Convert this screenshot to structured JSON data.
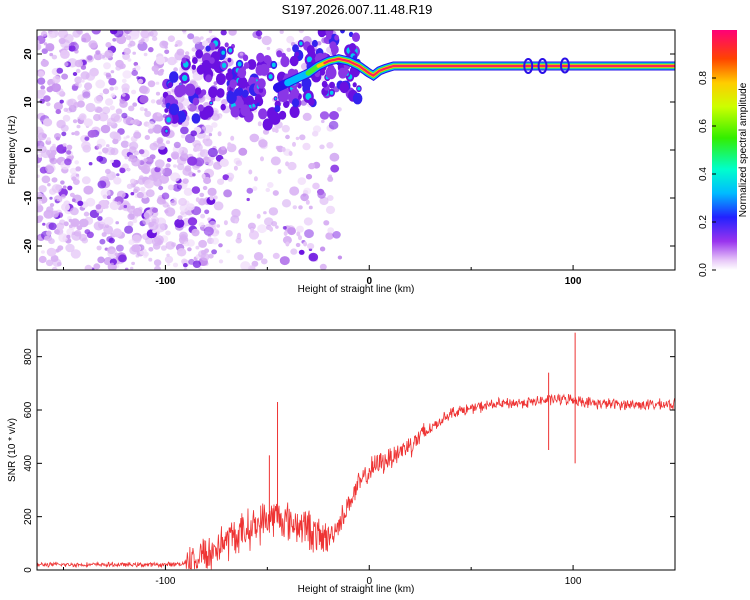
{
  "title": "S197.2026.007.11.48.R19",
  "chart_data": [
    {
      "type": "heatmap",
      "xlabel": "Height of straight line (km)",
      "ylabel": "Frequency (Hz)",
      "xlim": [
        -163,
        150
      ],
      "ylim": [
        -25,
        25
      ],
      "xticks": [
        "-100",
        "0",
        "100"
      ],
      "yticks": [
        "20",
        "10",
        "0",
        "-10",
        "-20"
      ],
      "colorbar": {
        "label": "Normalized spectral amplitude",
        "range": [
          0,
          1
        ],
        "ticks": [
          "0.0",
          "0.2",
          "0.4",
          "0.6",
          "0.8"
        ]
      },
      "ridge": [
        [
          -100,
          10.5
        ],
        [
          -90,
          12
        ],
        [
          -80,
          14.5
        ],
        [
          -70,
          16
        ],
        [
          -60,
          13.5
        ],
        [
          -50,
          12
        ],
        [
          -40,
          14
        ],
        [
          -30,
          16
        ],
        [
          -25,
          17.5
        ],
        [
          -20,
          18.5
        ],
        [
          -15,
          19
        ],
        [
          -10,
          18.5
        ],
        [
          -5,
          17.5
        ],
        [
          0,
          16
        ],
        [
          2,
          15.5
        ],
        [
          5,
          16.5
        ],
        [
          8,
          17
        ],
        [
          12,
          17.5
        ],
        [
          150,
          17.5
        ]
      ]
    },
    {
      "type": "line",
      "xlabel": "Height of straight line (km)",
      "ylabel": "SNR (10 * v/v)",
      "xlim": [
        -163,
        150
      ],
      "ylim": [
        0,
        900
      ],
      "xticks": [
        "-100",
        "0",
        "100"
      ],
      "yticks": [
        "0",
        "200",
        "400",
        "600",
        "800"
      ],
      "series": [
        {
          "color": "#ee3333",
          "x": [
            -163,
            -140,
            -120,
            -100,
            -90,
            -80,
            -70,
            -60,
            -50,
            -45,
            -40,
            -30,
            -25,
            -20,
            -15,
            -10,
            -5,
            0,
            5,
            10,
            20,
            30,
            40,
            60,
            80,
            90,
            100,
            110,
            130,
            150
          ],
          "y": [
            20,
            20,
            20,
            20,
            25,
            60,
            110,
            150,
            190,
            200,
            180,
            160,
            120,
            120,
            170,
            250,
            320,
            370,
            400,
            420,
            470,
            530,
            590,
            620,
            630,
            640,
            640,
            625,
            620,
            620
          ]
        }
      ],
      "spikes": [
        {
          "x": -45,
          "y": 630
        },
        {
          "x": -49,
          "y": 430
        },
        {
          "x": 101,
          "y": 890
        },
        {
          "x": 101,
          "y": 400
        },
        {
          "x": 88,
          "y": 740
        },
        {
          "x": 88,
          "y": 450
        }
      ]
    }
  ]
}
